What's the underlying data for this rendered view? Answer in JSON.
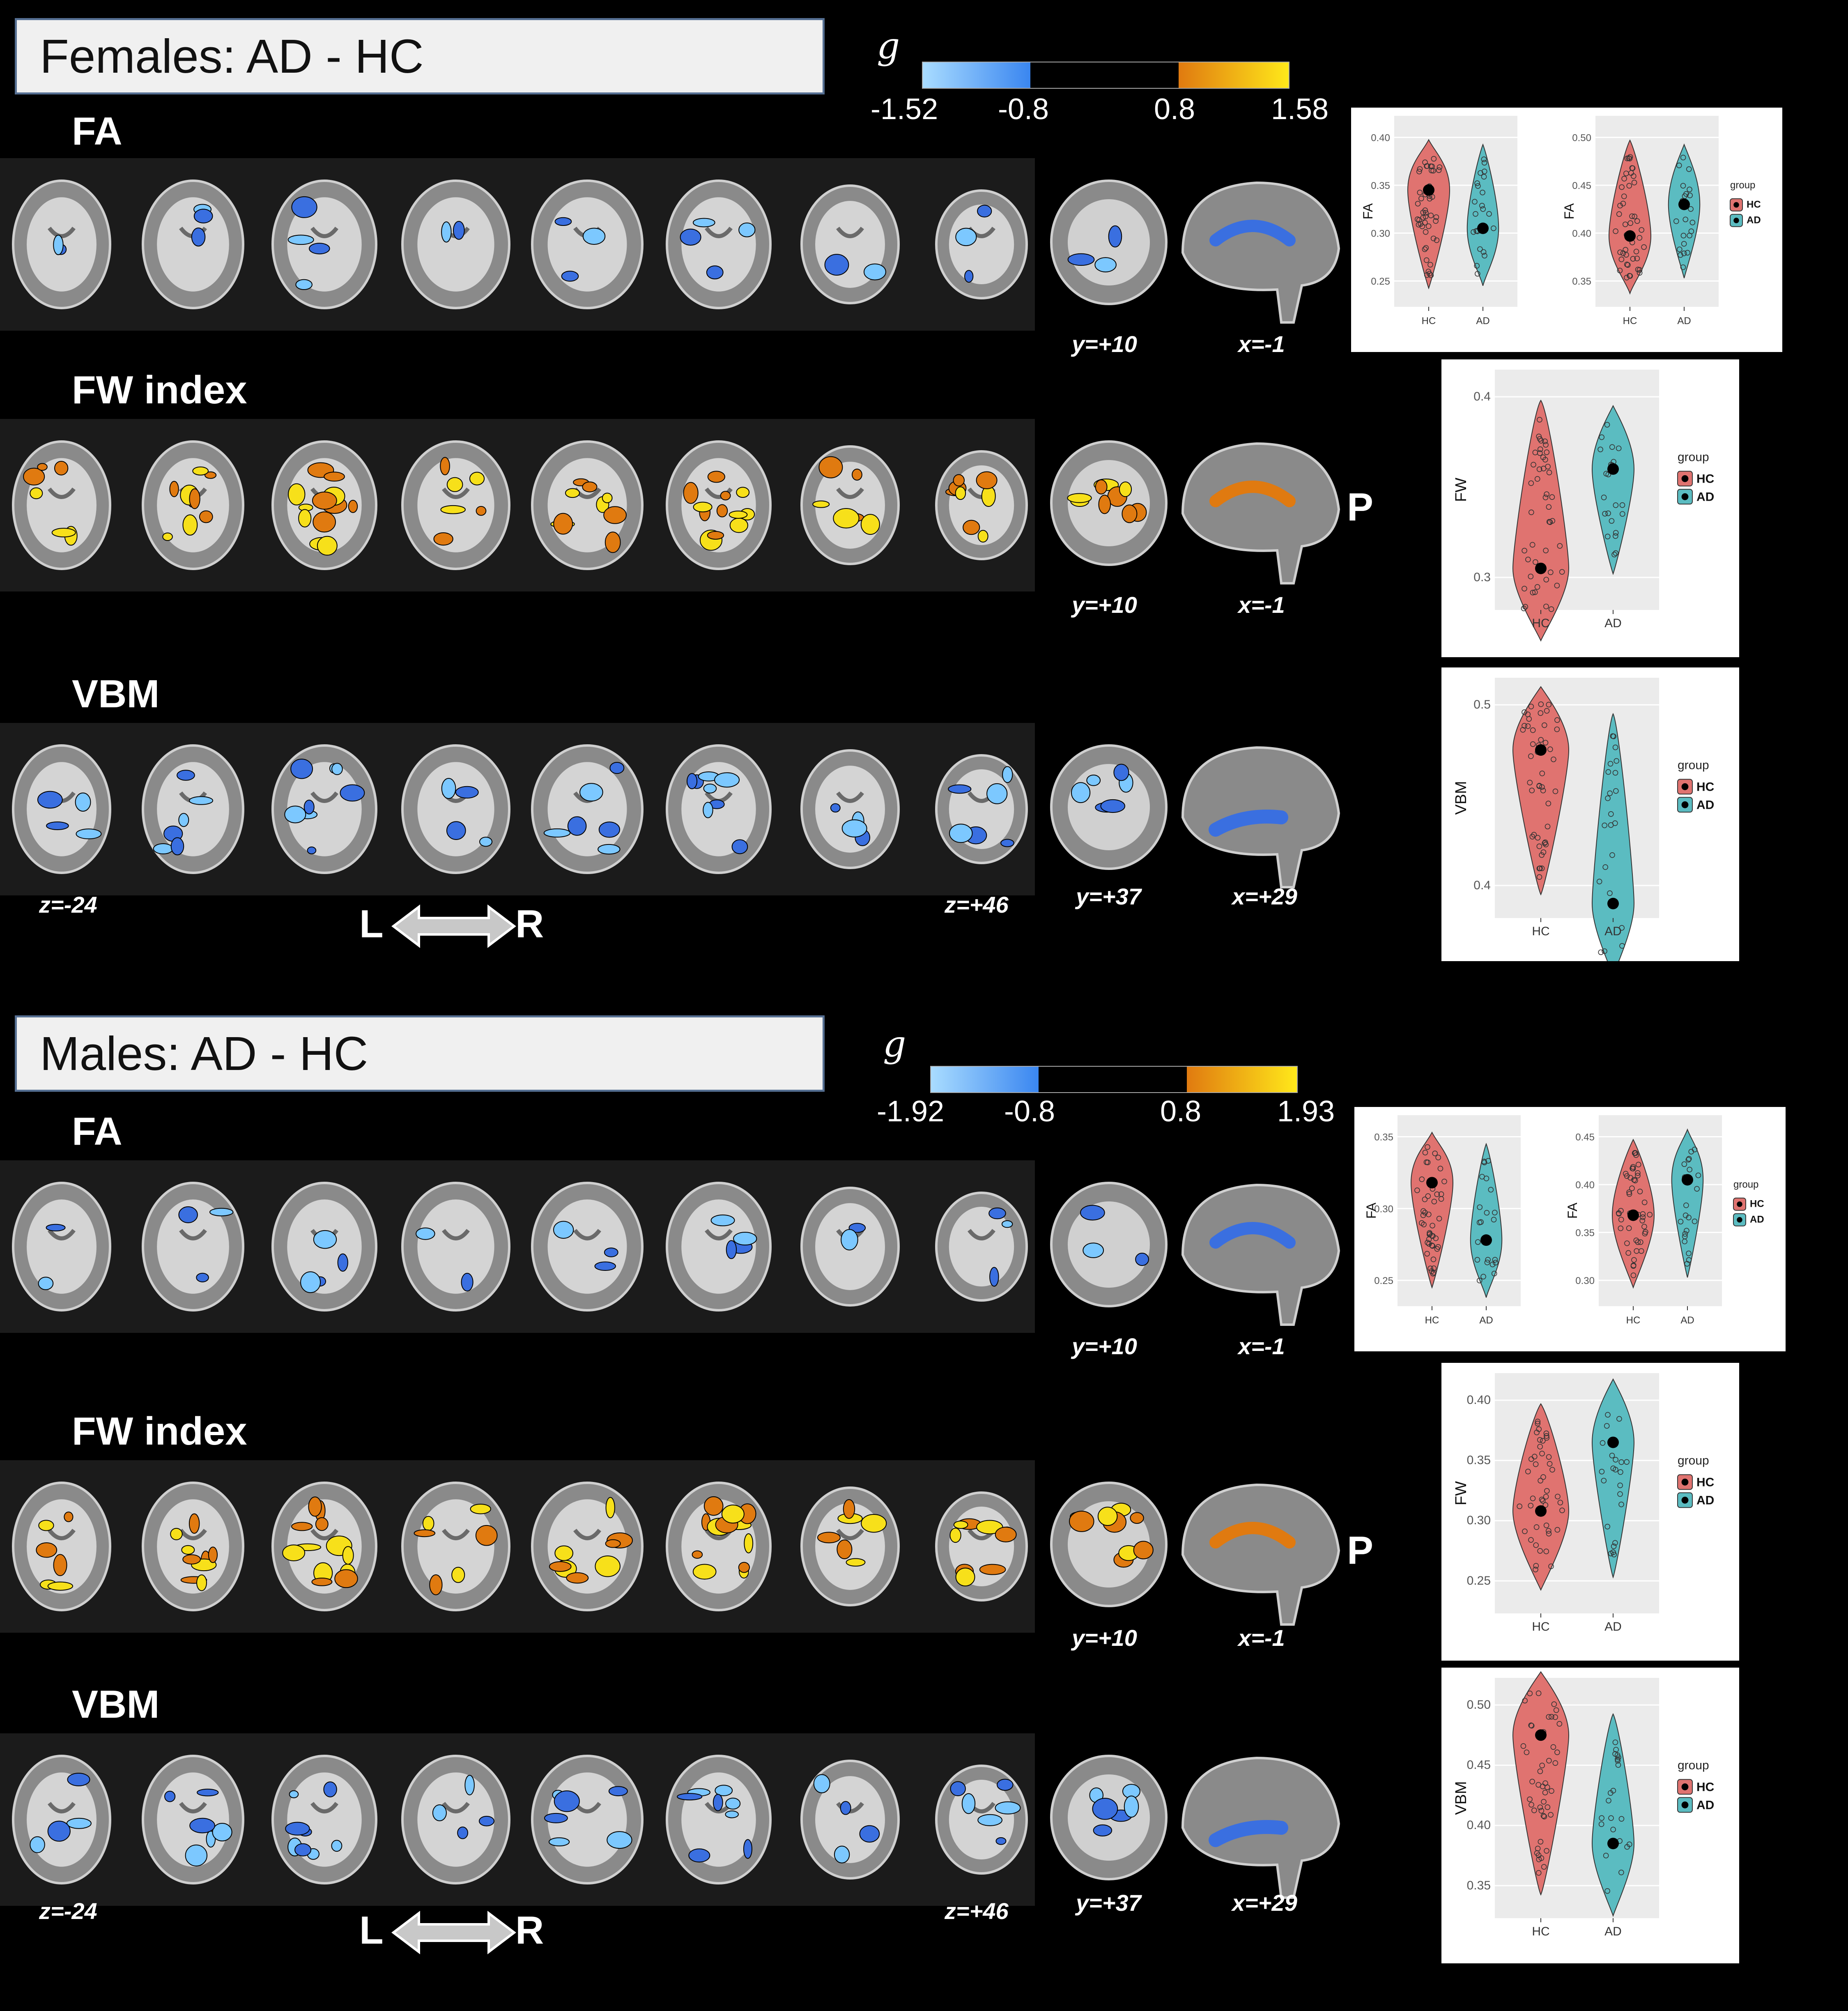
{
  "sections": [
    {
      "title": "Females: AD - HC",
      "g_symbol": "g",
      "colorbar": {
        "ticks": [
          "-1.52",
          "-0.8",
          "0.8",
          "1.58"
        ]
      },
      "rows": [
        {
          "label": "FA",
          "coords": [
            "y=+10",
            "x=-1"
          ],
          "map": "blue"
        },
        {
          "label": "FW index",
          "coords": [
            "y=+10",
            "x=-1"
          ],
          "map": "orange",
          "marker": "P"
        },
        {
          "label": "VBM",
          "coords": [
            "z=-24",
            "z=+46",
            "y=+37",
            "x=+29"
          ],
          "map": "blue"
        }
      ],
      "lr": {
        "left": "L",
        "right": "R"
      }
    },
    {
      "title": "Males: AD - HC",
      "g_symbol": "g",
      "colorbar": {
        "ticks": [
          "-1.92",
          "-0.8",
          "0.8",
          "1.93"
        ]
      },
      "rows": [
        {
          "label": "FA",
          "coords": [
            "y=+10",
            "x=-1"
          ],
          "map": "blue"
        },
        {
          "label": "FW index",
          "coords": [
            "y=+10",
            "x=-1"
          ],
          "map": "orange",
          "marker": "P"
        },
        {
          "label": "VBM",
          "coords": [
            "z=-24",
            "z=+46",
            "y=+37",
            "x=+29"
          ],
          "map": "blue"
        }
      ],
      "lr": {
        "left": "L",
        "right": "R"
      }
    }
  ],
  "colors": {
    "hc": "#e07370",
    "ad": "#5bbcc1",
    "neg_light": "#7cc8ff",
    "neg_dark": "#3a6fe0",
    "pos_dark": "#e07a10",
    "pos_light": "#f7e01a"
  },
  "chart_data": [
    {
      "type": "violin",
      "id": "f-fa-1",
      "ylabel": "FA",
      "categories": [
        "HC",
        "AD"
      ],
      "ticks": [
        "0.25",
        "0.30",
        "0.35",
        "0.40"
      ],
      "means": [
        0.345,
        0.305
      ]
    },
    {
      "type": "violin",
      "id": "f-fa-2",
      "ylabel": "FA",
      "categories": [
        "HC",
        "AD"
      ],
      "ticks": [
        "0.35",
        "0.40",
        "0.45",
        "0.50"
      ],
      "means": [
        0.397,
        0.43
      ],
      "legend": {
        "title": "group",
        "items": [
          "HC",
          "AD"
        ]
      }
    },
    {
      "type": "violin",
      "id": "f-fw",
      "ylabel": "FW",
      "categories": [
        "HC",
        "AD"
      ],
      "ticks": [
        "0.3",
        "0.4"
      ],
      "means": [
        0.305,
        0.36
      ],
      "legend": {
        "title": "group",
        "items": [
          "HC",
          "AD"
        ]
      }
    },
    {
      "type": "violin",
      "id": "f-vbm",
      "ylabel": "VBM",
      "categories": [
        "HC",
        "AD"
      ],
      "ticks": [
        "0.4",
        "0.5"
      ],
      "means": [
        0.475,
        0.39
      ],
      "legend": {
        "title": "group",
        "items": [
          "HC",
          "AD"
        ]
      }
    },
    {
      "type": "violin",
      "id": "m-fa-1",
      "ylabel": "FA",
      "categories": [
        "HC",
        "AD"
      ],
      "ticks": [
        "0.25",
        "0.30",
        "0.35"
      ],
      "means": [
        0.318,
        0.278
      ]
    },
    {
      "type": "violin",
      "id": "m-fa-2",
      "ylabel": "FA",
      "categories": [
        "HC",
        "AD"
      ],
      "ticks": [
        "0.30",
        "0.35",
        "0.40",
        "0.45"
      ],
      "means": [
        0.368,
        0.405
      ],
      "legend": {
        "title": "group",
        "items": [
          "HC",
          "AD"
        ]
      }
    },
    {
      "type": "violin",
      "id": "m-fw",
      "ylabel": "FW",
      "categories": [
        "HC",
        "AD"
      ],
      "ticks": [
        "0.25",
        "0.30",
        "0.35",
        "0.40"
      ],
      "means": [
        0.308,
        0.365
      ],
      "legend": {
        "title": "group",
        "items": [
          "HC",
          "AD"
        ]
      }
    },
    {
      "type": "violin",
      "id": "m-vbm",
      "ylabel": "VBM",
      "categories": [
        "HC",
        "AD"
      ],
      "ticks": [
        "0.35",
        "0.40",
        "0.45",
        "0.50"
      ],
      "means": [
        0.475,
        0.385
      ],
      "legend": {
        "title": "group",
        "items": [
          "HC",
          "AD"
        ]
      }
    }
  ]
}
